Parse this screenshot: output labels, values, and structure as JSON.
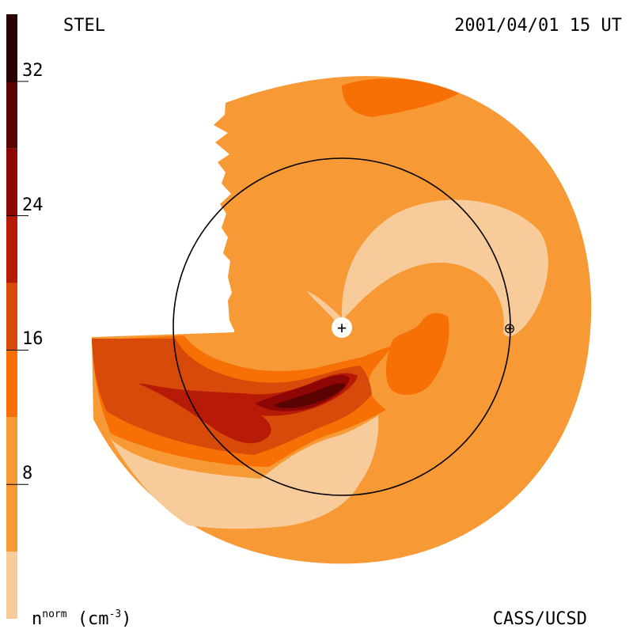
{
  "labels": {
    "observatory": "STEL",
    "datetime": "2001/04/01 15 UT",
    "credit": "CASS/UCSD",
    "colorbar_unit_n": "n",
    "colorbar_unit_sup": "norm",
    "colorbar_unit_rest": "(cm",
    "colorbar_unit_exp": "-3",
    "colorbar_unit_close": ")"
  },
  "chart_data": {
    "type": "heatmap",
    "colorbar": {
      "ticks": [
        "8",
        "16",
        "24",
        "32"
      ],
      "tick_values": [
        8,
        16,
        24,
        32
      ],
      "range": [
        0,
        36
      ],
      "levels": [
        {
          "from": 0,
          "to": 4,
          "color": "#f7cc9a"
        },
        {
          "from": 4,
          "to": 12,
          "color": "#f79a35"
        },
        {
          "from": 12,
          "to": 16,
          "color": "#f77005"
        },
        {
          "from": 16,
          "to": 20,
          "color": "#d84a0a"
        },
        {
          "from": 20,
          "to": 24,
          "color": "#b81a08"
        },
        {
          "from": 24,
          "to": 28,
          "color": "#8e0606"
        },
        {
          "from": 28,
          "to": 32,
          "color": "#5a0303"
        },
        {
          "from": 32,
          "to": 36,
          "color": "#2a0000"
        }
      ]
    },
    "markers": {
      "sun": "+",
      "earth": "⊕"
    },
    "colors": {
      "background_level": "#f79a35",
      "orbit_line": "#000000"
    }
  }
}
